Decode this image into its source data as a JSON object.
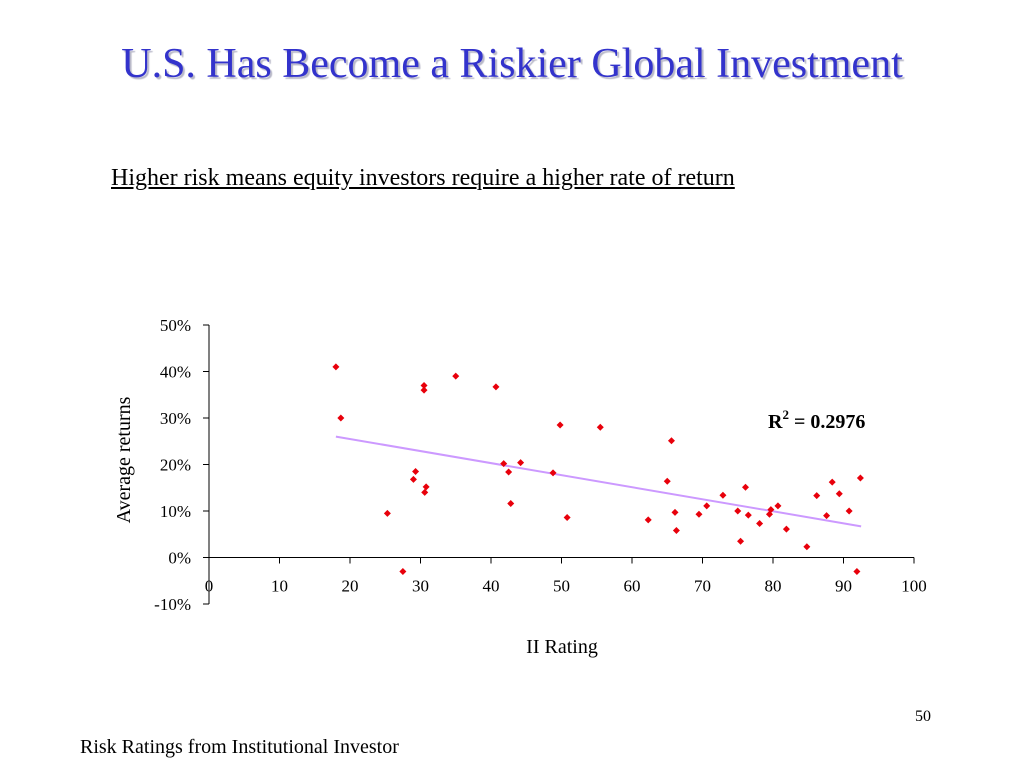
{
  "slide": {
    "title": "U.S. Has Become a Riskier Global Investment",
    "subtitle": "Higher risk means equity investors require a higher rate of return",
    "page_number": "50",
    "source_note": "Risk Ratings from Institutional Investor"
  },
  "chart_data": {
    "type": "scatter",
    "xlabel": "II Rating",
    "ylabel": "Average returns",
    "xlim": [
      0,
      100
    ],
    "ylim": [
      -0.1,
      0.5
    ],
    "x_ticks": [
      0,
      10,
      20,
      30,
      40,
      50,
      60,
      70,
      80,
      90,
      100
    ],
    "x_tick_labels": [
      "0",
      "10",
      "20",
      "30",
      "40",
      "50",
      "60",
      "70",
      "80",
      "90",
      "100"
    ],
    "y_ticks": [
      -0.1,
      0,
      0.1,
      0.2,
      0.3,
      0.4,
      0.5
    ],
    "y_tick_labels": [
      "-10%",
      "0%",
      "10%",
      "20%",
      "30%",
      "40%",
      "50%"
    ],
    "grid": false,
    "marker_color": "#e8000b",
    "trendline_color": "#cc99ff",
    "trendline": {
      "x": [
        18,
        92.5
      ],
      "y": [
        0.26,
        0.067
      ]
    },
    "annotation": {
      "r2_label": "R",
      "r2_exponent": "2",
      "r2_value": " = 0.2976"
    },
    "points": [
      [
        18.0,
        0.41
      ],
      [
        18.7,
        0.3
      ],
      [
        25.3,
        0.095
      ],
      [
        27.5,
        -0.03
      ],
      [
        29.0,
        0.168
      ],
      [
        29.3,
        0.185
      ],
      [
        30.5,
        0.37
      ],
      [
        30.5,
        0.36
      ],
      [
        30.6,
        0.14
      ],
      [
        30.8,
        0.152
      ],
      [
        35.0,
        0.39
      ],
      [
        40.7,
        0.367
      ],
      [
        41.8,
        0.202
      ],
      [
        42.5,
        0.184
      ],
      [
        42.8,
        0.116
      ],
      [
        44.2,
        0.204
      ],
      [
        48.8,
        0.182
      ],
      [
        49.8,
        0.285
      ],
      [
        50.8,
        0.086
      ],
      [
        55.5,
        0.28
      ],
      [
        62.3,
        0.081
      ],
      [
        65.0,
        0.164
      ],
      [
        65.6,
        0.251
      ],
      [
        66.1,
        0.097
      ],
      [
        66.3,
        0.058
      ],
      [
        69.5,
        0.093
      ],
      [
        70.6,
        0.111
      ],
      [
        72.9,
        0.134
      ],
      [
        75.0,
        0.1
      ],
      [
        75.4,
        0.035
      ],
      [
        76.1,
        0.151
      ],
      [
        76.5,
        0.091
      ],
      [
        78.1,
        0.073
      ],
      [
        79.5,
        0.093
      ],
      [
        79.7,
        0.103
      ],
      [
        80.7,
        0.111
      ],
      [
        81.9,
        0.061
      ],
      [
        84.8,
        0.023
      ],
      [
        86.2,
        0.133
      ],
      [
        87.6,
        0.09
      ],
      [
        88.4,
        0.162
      ],
      [
        89.4,
        0.137
      ],
      [
        90.8,
        0.1
      ],
      [
        91.9,
        -0.03
      ],
      [
        92.4,
        0.171
      ]
    ]
  }
}
